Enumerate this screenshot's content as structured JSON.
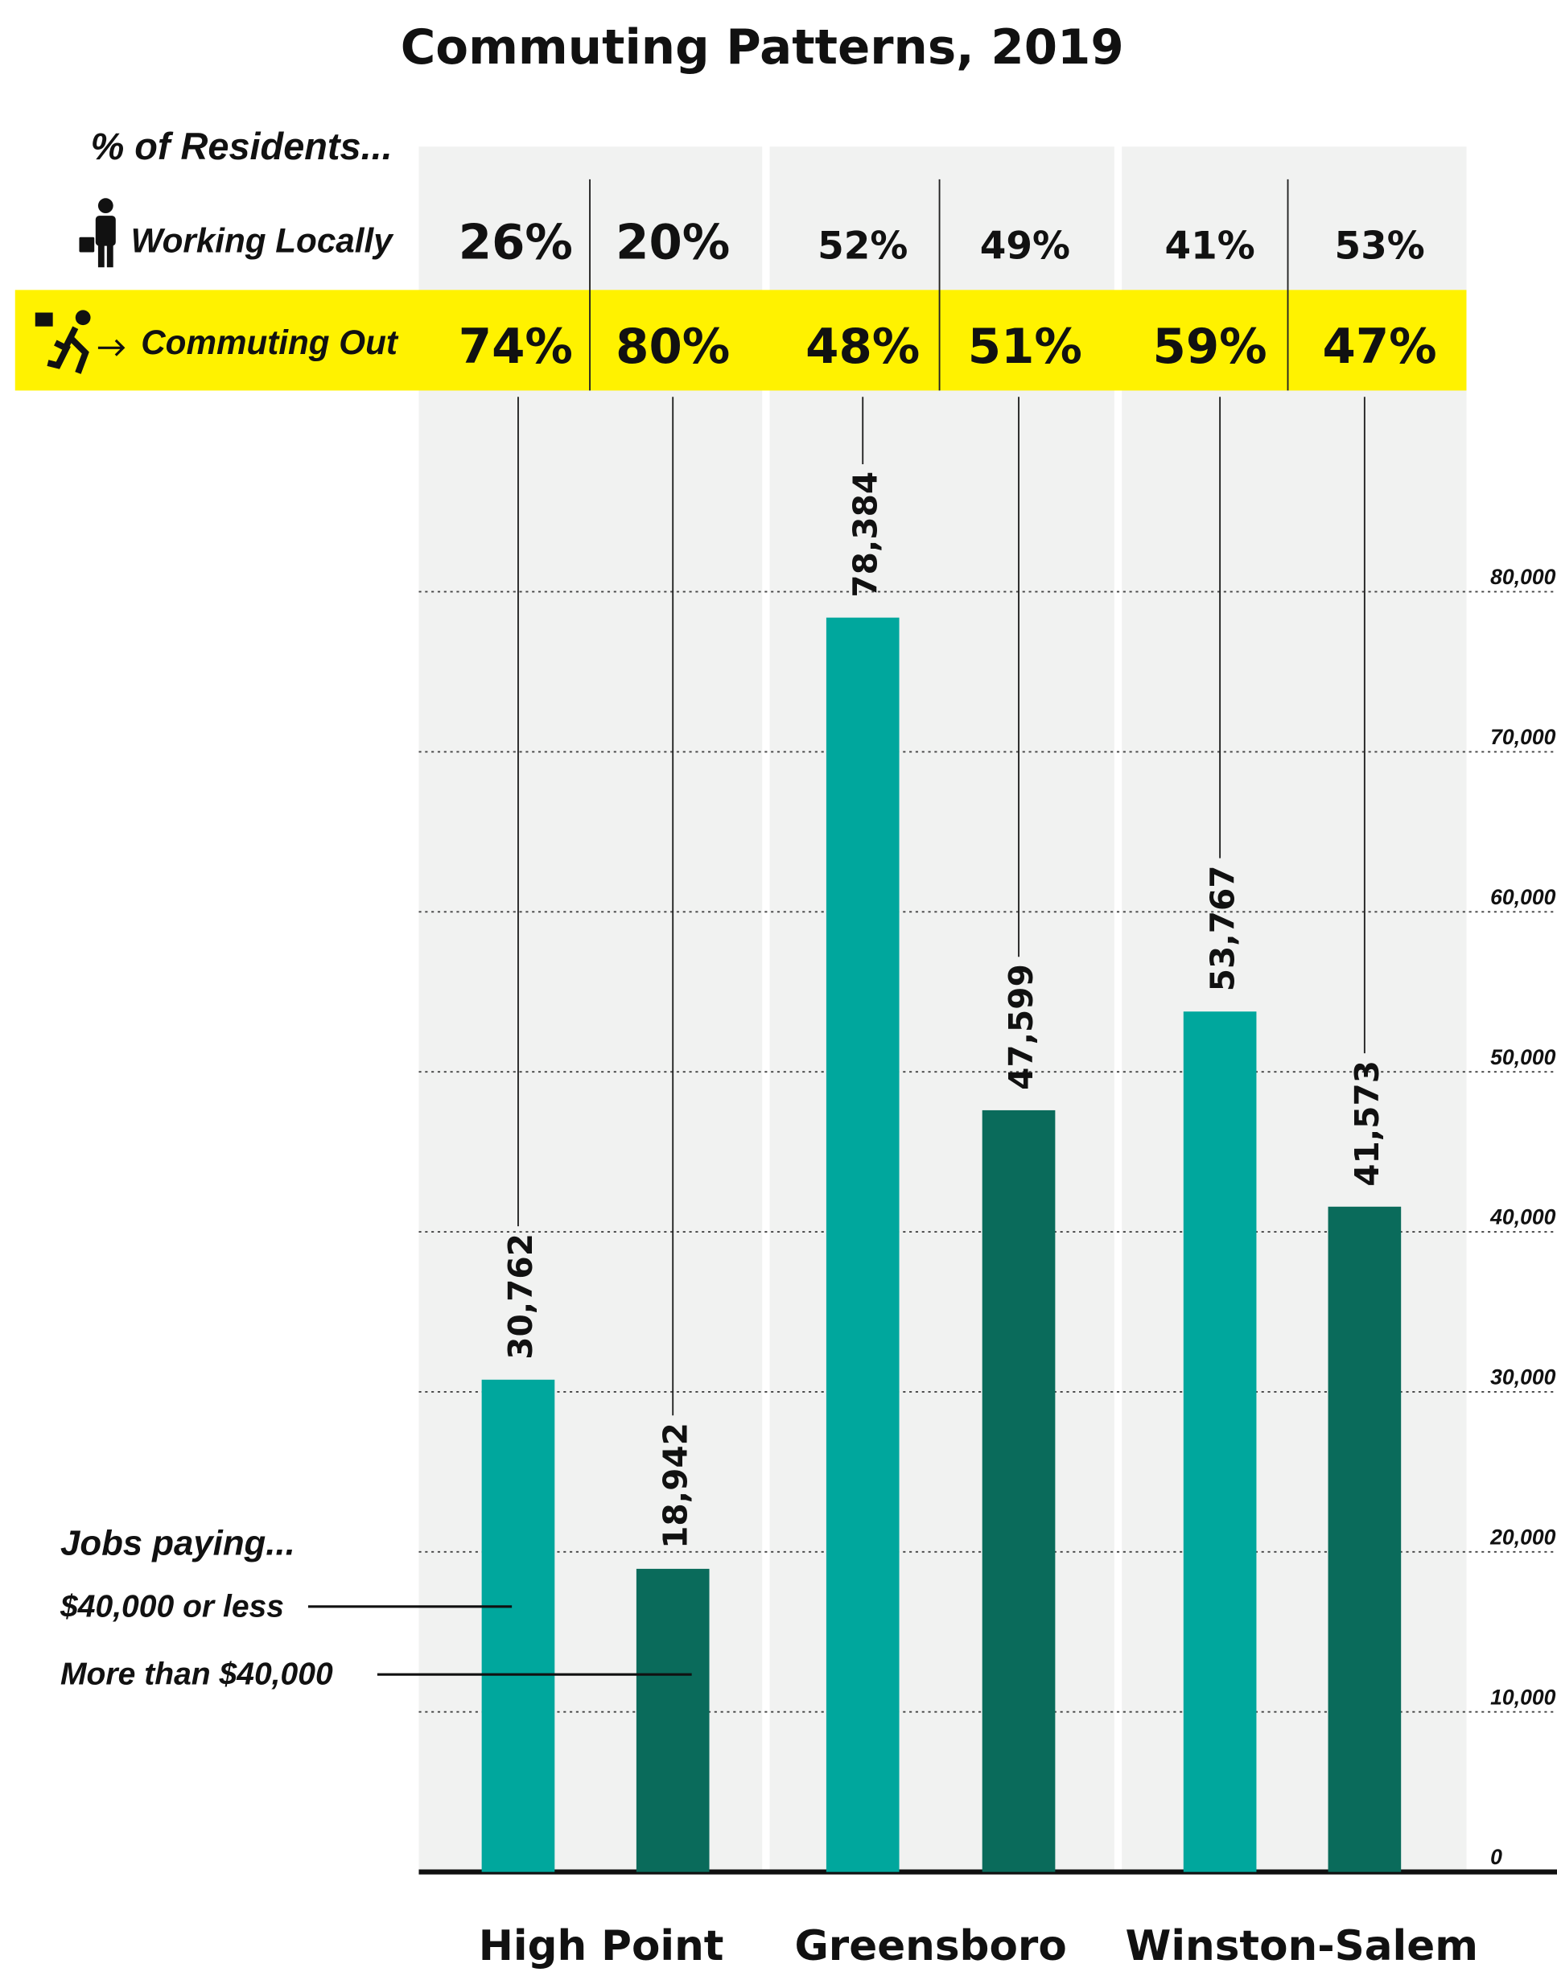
{
  "chart_data": {
    "type": "bar",
    "title": "Commuting Patterns, 2019",
    "categories": [
      "High Point",
      "Greensboro",
      "Winston-Salem"
    ],
    "series": [
      {
        "name": "$40,000 or less",
        "color": "#00a79d",
        "values": [
          30762,
          78384,
          53767
        ],
        "value_labels": [
          "30,762",
          "78,384",
          "53,767"
        ]
      },
      {
        "name": "More than $40,000",
        "color": "#0a6b5b",
        "values": [
          18942,
          47599,
          41573
        ],
        "value_labels": [
          "18,942",
          "47,599",
          "41,573"
        ]
      }
    ],
    "legend_title": "Jobs paying...",
    "ylim": [
      0,
      80000
    ],
    "yticks": [
      0,
      {
        "value": 10000,
        "label": "10,000"
      },
      {
        "value": 20000,
        "label": "20,000"
      },
      {
        "value": 30000,
        "label": "30,000"
      },
      {
        "value": 40000,
        "label": "40,000"
      },
      {
        "value": 50000,
        "label": "50,000"
      },
      {
        "value": 60000,
        "label": "60,000"
      },
      {
        "value": 70000,
        "label": "70,000"
      },
      {
        "value": 80000,
        "label": "80,000"
      }
    ],
    "grid": true
  },
  "residents": {
    "title": "% of Residents...",
    "rows": [
      {
        "label": "Working Locally",
        "cells": [
          "26%",
          "20%",
          "52%",
          "49%",
          "41%",
          "53%"
        ]
      },
      {
        "label": "Commuting Out",
        "cells": [
          "74%",
          "80%",
          "48%",
          "51%",
          "59%",
          "47%"
        ]
      }
    ]
  }
}
